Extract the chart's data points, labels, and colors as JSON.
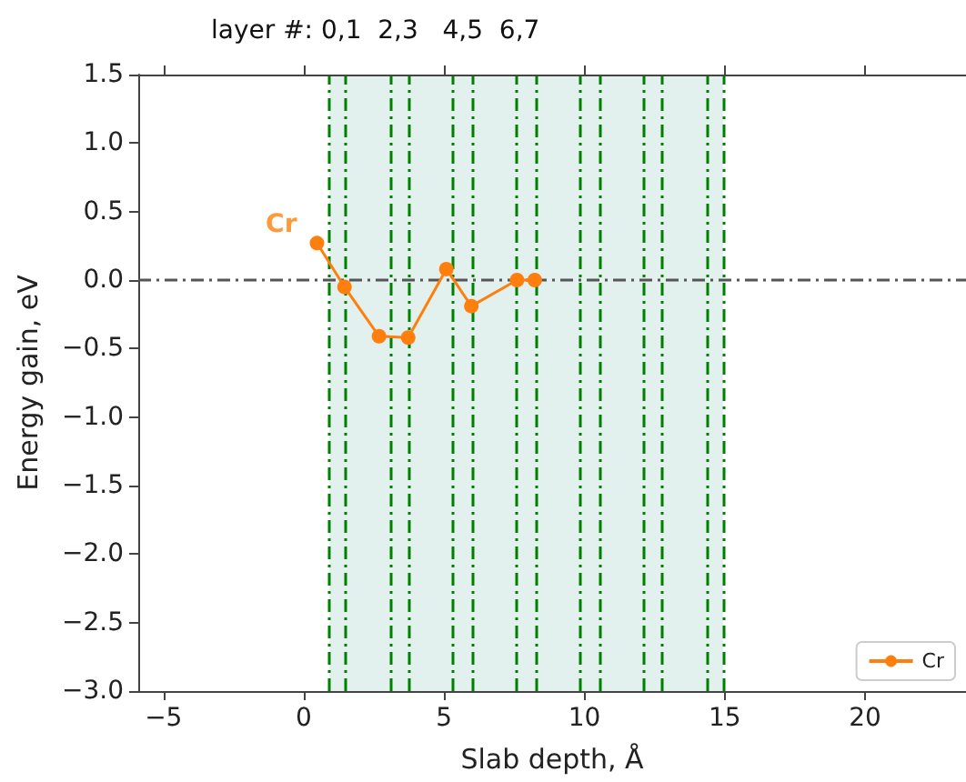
{
  "chart_data": {
    "type": "line",
    "xlabel": "Slab depth, Å",
    "ylabel": "Energy gain, eV",
    "annotations": [
      "layer #: 0,1  2,3   4,5  6,7",
      {
        "text": "Cr",
        "x": 0.47,
        "y": 0.27
      }
    ],
    "series": [
      {
        "name": "Cr",
        "color": "#ff7f0e",
        "x": [
          0.47,
          1.45,
          2.68,
          3.72,
          5.08,
          5.97,
          7.6,
          8.23
        ],
        "values": [
          0.27,
          -0.05,
          -0.41,
          -0.42,
          0.08,
          -0.19,
          0.0,
          0.0
        ]
      }
    ],
    "marker": "circle",
    "line_style": "solid",
    "legend": "bottom right",
    "grid": false,
    "xlim": [
      -5.9,
      23.6
    ],
    "xticks": [
      {
        "value": -5,
        "label": "−5"
      },
      0,
      5,
      10,
      15,
      20
    ],
    "ylim": [
      -3.0,
      1.5
    ],
    "yticks": [
      {
        "value": -3,
        "label": "−3.0"
      },
      {
        "value": -2.5,
        "label": "−2.5"
      },
      {
        "value": -2,
        "label": "−2.0"
      },
      {
        "value": -1.5,
        "label": "−1.5"
      },
      {
        "value": -1,
        "label": "−1.0"
      },
      {
        "value": -0.5,
        "label": "−0.5"
      },
      {
        "value": 0,
        "label": "0.0"
      },
      {
        "value": 0.5,
        "label": "0.5"
      },
      {
        "value": 1,
        "label": "1.0"
      },
      {
        "value": 1.5,
        "label": "1.5"
      }
    ],
    "ref_lines": [
      {
        "axis": "y",
        "value": 0,
        "color": "#555555",
        "line_style": "dashed"
      },
      {
        "axis": "x",
        "value": 0.91,
        "color": "#008000",
        "line_style": "dashed"
      },
      {
        "axis": "x",
        "value": 1.49,
        "color": "#008000",
        "line_style": "dashed"
      },
      {
        "axis": "x",
        "value": 3.1,
        "color": "#008000",
        "line_style": "dashed"
      },
      {
        "axis": "x",
        "value": 3.72,
        "color": "#008000",
        "line_style": "dashed"
      },
      {
        "axis": "x",
        "value": 5.3,
        "color": "#008000",
        "line_style": "dashed"
      },
      {
        "axis": "x",
        "value": 6.02,
        "color": "#008000",
        "line_style": "dashed"
      },
      {
        "axis": "x",
        "value": 7.58,
        "color": "#008000",
        "line_style": "dashed"
      },
      {
        "axis": "x",
        "value": 8.29,
        "color": "#008000",
        "line_style": "dashed"
      },
      {
        "axis": "x",
        "value": 9.85,
        "color": "#008000",
        "line_style": "dashed"
      },
      {
        "axis": "x",
        "value": 10.54,
        "color": "#008000",
        "line_style": "dashed"
      },
      {
        "axis": "x",
        "value": 12.12,
        "color": "#008000",
        "line_style": "dashed"
      },
      {
        "axis": "x",
        "value": 12.75,
        "color": "#008000",
        "line_style": "dashed"
      },
      {
        "axis": "x",
        "value": 14.35,
        "color": "#008000",
        "line_style": "dashed"
      },
      {
        "axis": "x",
        "value": 14.94,
        "color": "#008000",
        "line_style": "dashed"
      }
    ],
    "bands": [
      {
        "axis": "x",
        "from": 0.91,
        "to": 14.94,
        "color": "#e3f1ee"
      }
    ]
  }
}
